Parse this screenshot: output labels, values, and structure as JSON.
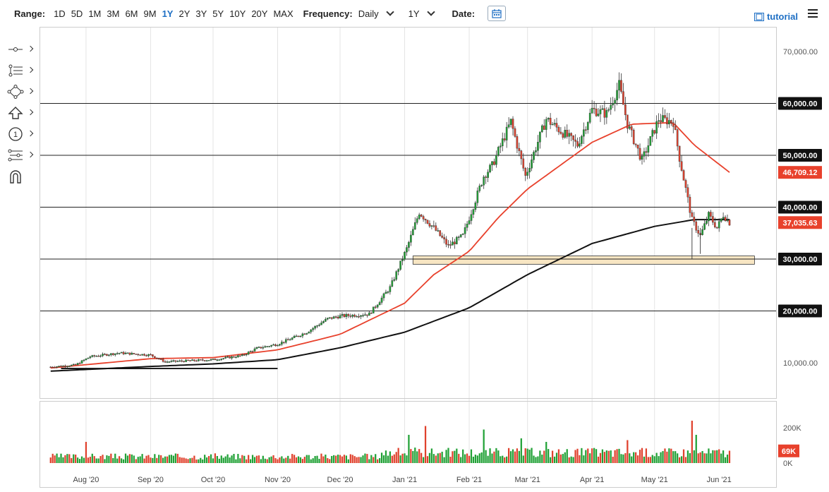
{
  "toolbar": {
    "range_label": "Range:",
    "ranges": [
      "1D",
      "5D",
      "1M",
      "3M",
      "6M",
      "9M",
      "1Y",
      "2Y",
      "3Y",
      "5Y",
      "10Y",
      "20Y",
      "MAX"
    ],
    "active_range": "1Y",
    "frequency_label": "Frequency:",
    "frequency_value": "Daily",
    "period_value": "1Y",
    "date_label": "Date:",
    "tutorial_label": "tutorial"
  },
  "sidebar_tools": [
    "crosshair-icon",
    "multi-line-icon",
    "pattern-icon",
    "arrow-up-icon",
    "counter-icon",
    "fib-icon",
    "magnet-icon"
  ],
  "colors": {
    "up": "#21a136",
    "down": "#e0412d",
    "ma_short": "#e8412c",
    "ma_long": "#111111",
    "support_zone": "#f8e6c3",
    "badge_dark": "#111111",
    "badge_red": "#e8412c"
  },
  "chart_data": {
    "type": "candlestick",
    "title": "",
    "xlabel": "",
    "ylabel": "",
    "ylim": [
      0,
      72000
    ],
    "y_ticks": [
      "70,000.00",
      "10,000.00"
    ],
    "x_ticks": [
      "Aug '20",
      "Sep '20",
      "Oct '20",
      "Nov '20",
      "Dec '20",
      "Jan '21",
      "Feb '21",
      "Mar '21",
      "Apr '21",
      "May '21",
      "Jun '21"
    ],
    "horizontal_levels": [
      {
        "value": 60000,
        "label": "60,000.00"
      },
      {
        "value": 50000,
        "label": "50,000.00"
      },
      {
        "value": 40000,
        "label": "40,000.00"
      },
      {
        "value": 30000,
        "label": "30,000.00"
      },
      {
        "value": 20000,
        "label": "20,000.00"
      }
    ],
    "ma_short_last": {
      "value": 46709.12,
      "label": "46,709.12"
    },
    "last_price": {
      "value": 37035.63,
      "label": "37,035.63"
    },
    "support_zone": {
      "low": 29000,
      "high": 30600
    },
    "trendline": [
      {
        "x": "2020-07-20",
        "y": 8900
      },
      {
        "x": "2020-11-01",
        "y": 8900
      }
    ],
    "price_anchors": [
      [
        "2020-07-15",
        9200
      ],
      [
        "2020-07-27",
        9600
      ],
      [
        "2020-08-03",
        11200
      ],
      [
        "2020-08-17",
        11900
      ],
      [
        "2020-09-01",
        11500
      ],
      [
        "2020-09-08",
        10200
      ],
      [
        "2020-10-01",
        10600
      ],
      [
        "2020-10-15",
        11400
      ],
      [
        "2020-10-22",
        12800
      ],
      [
        "2020-11-01",
        13600
      ],
      [
        "2020-11-15",
        15900
      ],
      [
        "2020-11-25",
        18500
      ],
      [
        "2020-12-01",
        19000
      ],
      [
        "2020-12-15",
        19400
      ],
      [
        "2020-12-25",
        24500
      ],
      [
        "2021-01-02",
        32000
      ],
      [
        "2021-01-08",
        39000
      ],
      [
        "2021-01-15",
        36000
      ],
      [
        "2021-01-22",
        32500
      ],
      [
        "2021-01-29",
        34500
      ],
      [
        "2021-02-08",
        46000
      ],
      [
        "2021-02-12",
        48000
      ],
      [
        "2021-02-21",
        56500
      ],
      [
        "2021-02-28",
        46000
      ],
      [
        "2021-03-10",
        57000
      ],
      [
        "2021-03-25",
        52000
      ],
      [
        "2021-04-01",
        58800
      ],
      [
        "2021-04-08",
        58000
      ],
      [
        "2021-04-14",
        63500
      ],
      [
        "2021-04-18",
        56000
      ],
      [
        "2021-04-25",
        49000
      ],
      [
        "2021-05-03",
        57000
      ],
      [
        "2021-05-10",
        56500
      ],
      [
        "2021-05-13",
        49500
      ],
      [
        "2021-05-19",
        37500
      ],
      [
        "2021-05-23",
        34500
      ],
      [
        "2021-05-27",
        38500
      ],
      [
        "2021-05-31",
        36000
      ],
      [
        "2021-06-03",
        38500
      ],
      [
        "2021-06-06",
        37035
      ]
    ],
    "ma_short_anchors": [
      [
        "2020-07-15",
        9000
      ],
      [
        "2020-09-01",
        10800
      ],
      [
        "2020-10-01",
        11000
      ],
      [
        "2020-11-01",
        12500
      ],
      [
        "2020-12-01",
        15500
      ],
      [
        "2021-01-01",
        21500
      ],
      [
        "2021-01-15",
        27000
      ],
      [
        "2021-02-01",
        31500
      ],
      [
        "2021-02-15",
        38000
      ],
      [
        "2021-03-01",
        43500
      ],
      [
        "2021-04-01",
        52500
      ],
      [
        "2021-04-20",
        56000
      ],
      [
        "2021-05-10",
        56300
      ],
      [
        "2021-05-20",
        52000
      ],
      [
        "2021-06-06",
        46709
      ]
    ],
    "ma_long_anchors": [
      [
        "2020-07-15",
        8400
      ],
      [
        "2020-09-01",
        9300
      ],
      [
        "2020-10-01",
        9800
      ],
      [
        "2020-11-01",
        10600
      ],
      [
        "2020-12-01",
        12900
      ],
      [
        "2021-01-01",
        15900
      ],
      [
        "2021-02-01",
        20600
      ],
      [
        "2021-03-01",
        27000
      ],
      [
        "2021-04-01",
        33000
      ],
      [
        "2021-05-01",
        36300
      ],
      [
        "2021-05-20",
        37600
      ],
      [
        "2021-06-06",
        37600
      ]
    ],
    "volume": {
      "ylim": [
        0,
        260000
      ],
      "tick_labels": [
        "200K",
        "0K"
      ],
      "last": {
        "value": 69000,
        "label": "69K"
      },
      "spikes": [
        [
          "2020-08-01",
          120000
        ],
        [
          "2021-01-03",
          160000
        ],
        [
          "2021-01-11",
          210000
        ],
        [
          "2021-02-08",
          190000
        ],
        [
          "2021-02-26",
          140000
        ],
        [
          "2021-03-10",
          120000
        ],
        [
          "2021-04-18",
          130000
        ],
        [
          "2021-05-19",
          240000
        ],
        [
          "2021-05-21",
          160000
        ]
      ]
    }
  }
}
